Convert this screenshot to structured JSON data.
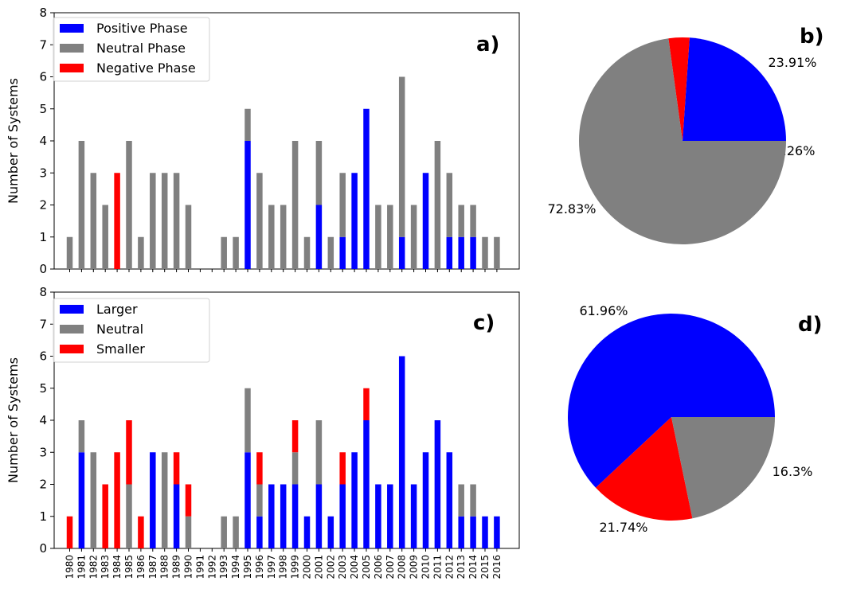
{
  "colors": {
    "blue": "#0000ff",
    "gray": "#808080",
    "red": "#ff0000"
  },
  "years": [
    "1980",
    "1981",
    "1982",
    "1983",
    "1984",
    "1985",
    "1986",
    "1987",
    "1988",
    "1989",
    "1990",
    "1991",
    "1992",
    "1993",
    "1994",
    "1995",
    "1996",
    "1997",
    "1998",
    "1999",
    "2000",
    "2001",
    "2002",
    "2003",
    "2004",
    "2005",
    "2006",
    "2007",
    "2008",
    "2009",
    "2010",
    "2011",
    "2012",
    "2013",
    "2014",
    "2015",
    "2016"
  ],
  "chart_data": [
    {
      "id": "a",
      "type": "bar",
      "stacked": true,
      "panel_label": "a)",
      "ylabel": "Number of Systems",
      "ylim": [
        0,
        8
      ],
      "yticks": [
        "0",
        "1",
        "2",
        "3",
        "4",
        "5",
        "6",
        "7",
        "8"
      ],
      "legend_position": "top-left",
      "series": [
        {
          "name": "Positive Phase",
          "color": "#0000ff",
          "values": [
            0,
            0,
            0,
            0,
            0,
            0,
            0,
            0,
            0,
            0,
            0,
            0,
            0,
            0,
            0,
            4,
            0,
            0,
            0,
            0,
            0,
            2,
            0,
            1,
            3,
            5,
            0,
            0,
            1,
            0,
            3,
            0,
            1,
            1,
            1,
            0,
            0
          ]
        },
        {
          "name": "Neutral Phase",
          "color": "#808080",
          "values": [
            1,
            4,
            3,
            2,
            0,
            4,
            1,
            3,
            3,
            3,
            2,
            0,
            0,
            1,
            1,
            1,
            3,
            2,
            2,
            4,
            1,
            2,
            1,
            2,
            0,
            0,
            2,
            2,
            5,
            2,
            0,
            4,
            2,
            1,
            1,
            1,
            1
          ]
        },
        {
          "name": "Negative Phase",
          "color": "#ff0000",
          "values": [
            0,
            0,
            0,
            0,
            3,
            0,
            0,
            0,
            0,
            0,
            0,
            0,
            0,
            0,
            0,
            0,
            0,
            0,
            0,
            0,
            0,
            0,
            0,
            0,
            0,
            0,
            0,
            0,
            0,
            0,
            0,
            0,
            0,
            0,
            0,
            0,
            0
          ]
        }
      ]
    },
    {
      "id": "b",
      "type": "pie",
      "panel_label": "b)",
      "slices": [
        {
          "name": "Positive Phase",
          "value": 23.91,
          "label": "23.91%",
          "color": "#0000ff"
        },
        {
          "name": "Negative Phase",
          "value": 3.26,
          "label": "3.26%",
          "color": "#ff0000"
        },
        {
          "name": "Neutral Phase",
          "value": 72.83,
          "label": "72.83%",
          "color": "#808080"
        }
      ]
    },
    {
      "id": "c",
      "type": "bar",
      "stacked": true,
      "panel_label": "c)",
      "ylabel": "Number of Systems",
      "ylim": [
        0,
        8
      ],
      "yticks": [
        "0",
        "1",
        "2",
        "3",
        "4",
        "5",
        "6",
        "7",
        "8"
      ],
      "legend_position": "top-left",
      "series": [
        {
          "name": "Larger",
          "color": "#0000ff",
          "values": [
            0,
            3,
            0,
            0,
            0,
            0,
            0,
            3,
            0,
            2,
            0,
            0,
            0,
            0,
            0,
            3,
            1,
            2,
            2,
            2,
            1,
            2,
            1,
            2,
            3,
            4,
            2,
            2,
            6,
            2,
            3,
            4,
            3,
            1,
            1,
            1,
            1
          ]
        },
        {
          "name": "Neutral",
          "color": "#808080",
          "values": [
            0,
            1,
            3,
            0,
            0,
            2,
            0,
            0,
            3,
            0,
            1,
            0,
            0,
            1,
            1,
            2,
            1,
            0,
            0,
            1,
            0,
            2,
            0,
            0,
            0,
            0,
            0,
            0,
            0,
            0,
            0,
            0,
            0,
            1,
            1,
            0,
            0
          ]
        },
        {
          "name": "Smaller",
          "color": "#ff0000",
          "values": [
            1,
            0,
            0,
            2,
            3,
            2,
            1,
            0,
            0,
            1,
            1,
            0,
            0,
            0,
            0,
            0,
            1,
            0,
            0,
            1,
            0,
            0,
            0,
            1,
            0,
            1,
            0,
            0,
            0,
            0,
            0,
            0,
            0,
            0,
            0,
            0,
            0
          ]
        }
      ]
    },
    {
      "id": "d",
      "type": "pie",
      "panel_label": "d)",
      "slices": [
        {
          "name": "Larger",
          "value": 61.96,
          "label": "61.96%",
          "color": "#0000ff"
        },
        {
          "name": "Smaller",
          "value": 16.3,
          "label": "16.3%",
          "color": "#ff0000"
        },
        {
          "name": "Neutral",
          "value": 21.74,
          "label": "21.74%",
          "color": "#808080"
        }
      ]
    }
  ]
}
